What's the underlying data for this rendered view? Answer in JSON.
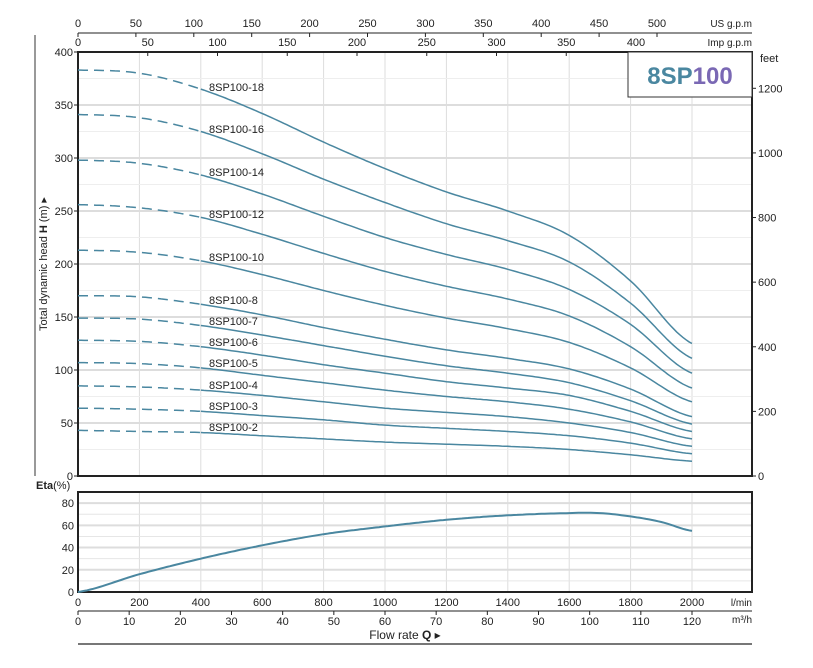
{
  "title": {
    "prefix": "8SP",
    "suffix": "100",
    "prefix_color": "#4a87a0",
    "suffix_color": "#7a68b4"
  },
  "chart_data": [
    {
      "type": "line",
      "title": "8SP100",
      "ylabel": "Total dynamic head",
      "ylabel_symbol": "H",
      "ylabel_unit": "(m)",
      "ylim": [
        0,
        400
      ],
      "yticks": [
        0,
        50,
        100,
        150,
        200,
        250,
        300,
        350,
        400
      ],
      "y2label": "feet",
      "y2ticks": [
        0,
        200,
        400,
        600,
        800,
        1000,
        1200
      ],
      "xlabel_unit": "l/min",
      "xlim": [
        0,
        2190
      ],
      "xticks": [
        0,
        200,
        400,
        600,
        800,
        1000,
        1200,
        1400,
        1600,
        1800,
        2000
      ],
      "top_axis_us": {
        "label": "US g.p.m",
        "ticks": [
          0,
          50,
          100,
          150,
          200,
          250,
          300,
          350,
          400,
          450,
          500
        ]
      },
      "top_axis_imp": {
        "label": "Imp g.p.m",
        "ticks": [
          0,
          50,
          100,
          150,
          200,
          250,
          300,
          350,
          400
        ]
      },
      "dashed_until": 400,
      "x": [
        0,
        200,
        400,
        600,
        800,
        1000,
        1200,
        1400,
        1600,
        1800,
        2000
      ],
      "series": [
        {
          "name": "8SP100-18",
          "values": [
            383,
            380,
            365,
            342,
            315,
            290,
            268,
            250,
            227,
            184,
            125
          ]
        },
        {
          "name": "8SP100-16",
          "values": [
            341,
            338,
            325,
            304,
            280,
            258,
            238,
            222,
            202,
            163,
            111
          ]
        },
        {
          "name": "8SP100-14",
          "values": [
            298,
            295,
            284,
            266,
            245,
            225,
            209,
            195,
            176,
            143,
            97
          ]
        },
        {
          "name": "8SP100-12",
          "values": [
            256,
            253,
            244,
            228,
            210,
            193,
            179,
            167,
            151,
            122,
            83
          ]
        },
        {
          "name": "8SP100-10",
          "values": [
            213,
            211,
            203,
            190,
            175,
            161,
            149,
            139,
            126,
            102,
            70
          ]
        },
        {
          "name": "8SP100-8",
          "values": [
            170,
            169,
            162,
            152,
            140,
            129,
            119,
            111,
            101,
            82,
            56
          ]
        },
        {
          "name": "8SP100-7",
          "values": [
            149,
            148,
            142,
            133,
            123,
            113,
            104,
            97,
            88,
            71,
            49
          ]
        },
        {
          "name": "8SP100-6",
          "values": [
            128,
            127,
            122,
            114,
            105,
            97,
            89,
            83,
            76,
            61,
            42
          ]
        },
        {
          "name": "8SP100-5",
          "values": [
            107,
            106,
            102,
            95,
            88,
            81,
            75,
            70,
            63,
            51,
            35
          ]
        },
        {
          "name": "8SP100-4",
          "values": [
            85,
            84,
            81,
            76,
            70,
            64,
            60,
            56,
            50,
            41,
            28
          ]
        },
        {
          "name": "8SP100-3",
          "values": [
            64,
            63,
            61,
            57,
            53,
            48,
            45,
            42,
            38,
            31,
            21
          ]
        },
        {
          "name": "8SP100-2",
          "values": [
            43,
            42,
            41,
            38,
            35,
            32,
            30,
            28,
            25,
            20,
            14
          ]
        }
      ],
      "color": "#4a87a0"
    },
    {
      "type": "line",
      "ylabel": "Eta",
      "ylabel_unit": "(%)",
      "ylim": [
        0,
        90
      ],
      "yticks": [
        0,
        20,
        40,
        60,
        80
      ],
      "x": [
        0,
        200,
        400,
        600,
        800,
        1000,
        1200,
        1400,
        1600,
        1700,
        1800,
        1900,
        2000
      ],
      "values": [
        0,
        16,
        30,
        42,
        52,
        59,
        65,
        69,
        71,
        71,
        68,
        63,
        55
      ],
      "xticks_lmin": {
        "label": "l/min",
        "ticks": [
          0,
          200,
          400,
          600,
          800,
          1000,
          1200,
          1400,
          1600,
          1800,
          2000
        ]
      },
      "xticks_m3h": {
        "label": "m³/h",
        "ticks": [
          0,
          10,
          20,
          30,
          40,
          50,
          60,
          70,
          80,
          90,
          100,
          110,
          120
        ]
      },
      "xlabel": "Flow rate",
      "xlabel_symbol": "Q"
    }
  ]
}
